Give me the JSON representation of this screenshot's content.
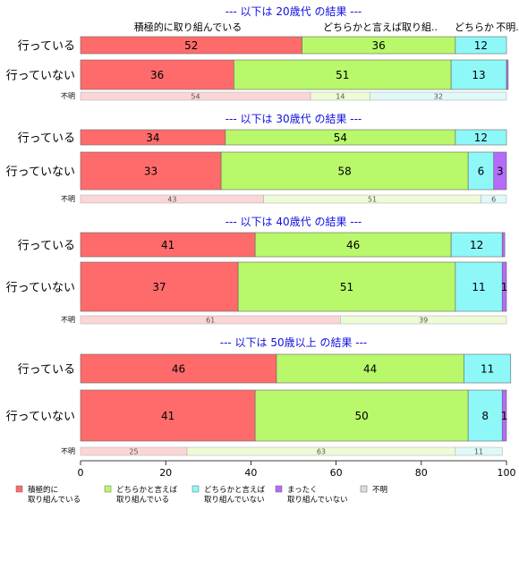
{
  "chart_data": {
    "type": "bar",
    "orientation": "horizontal-stacked-percent",
    "xlim": [
      0,
      100
    ],
    "x_ticks": [
      "0",
      "20",
      "40",
      "60",
      "80",
      "100"
    ],
    "colors": {
      "active": "#ff6b6b",
      "somewhat_active": "#b8f86a",
      "somewhat_inactive": "#8ef8f8",
      "inactive": "#b36bf8",
      "unknown": "#dddddd"
    },
    "top_headers": [
      "積極的に取り組んでいる",
      "どちらかと言えば取り組..",
      "どちらか",
      "不明."
    ],
    "legend": [
      {
        "key": "active",
        "line1": "積極的に",
        "line2": "取り組んでいる"
      },
      {
        "key": "somewhat_active",
        "line1": "どちらかと言えば",
        "line2": "取り組んでいる"
      },
      {
        "key": "somewhat_inactive",
        "line1": "どちらかと言えば",
        "line2": "取り組んでいない"
      },
      {
        "key": "inactive",
        "line1": "まったく",
        "line2": "取り組んでいない"
      },
      {
        "key": "unknown",
        "line1": "不明",
        "line2": ""
      }
    ],
    "panels": [
      {
        "title": "--- 以下は 20歳代 の結果 ---",
        "rows": [
          {
            "label": "行っている",
            "values": [
              52,
              36,
              12,
              0
            ],
            "labels": [
              "52",
              "36",
              "12",
              ""
            ]
          },
          {
            "label": "行っていない",
            "values": [
              36,
              51,
              13,
              0.4
            ],
            "labels": [
              "36",
              "51",
              "13",
              ""
            ]
          }
        ],
        "unknown": {
          "label": "不明",
          "values": [
            54,
            14,
            32,
            0
          ],
          "labels": [
            "54",
            "14",
            "32",
            ""
          ]
        }
      },
      {
        "title": "--- 以下は 30歳代 の結果 ---",
        "rows": [
          {
            "label": "行っている",
            "values": [
              34,
              54,
              12,
              0
            ],
            "labels": [
              "34",
              "54",
              "12",
              ""
            ]
          },
          {
            "label": "行っていない",
            "values": [
              33,
              58,
              6,
              3
            ],
            "labels": [
              "33",
              "58",
              "6",
              "3"
            ]
          }
        ],
        "unknown": {
          "label": "不明",
          "values": [
            43,
            51,
            6,
            0
          ],
          "labels": [
            "43",
            "51",
            "6",
            ""
          ]
        }
      },
      {
        "title": "--- 以下は 40歳代 の結果 ---",
        "rows": [
          {
            "label": "行っている",
            "values": [
              41,
              46,
              12,
              0.6
            ],
            "labels": [
              "41",
              "46",
              "12",
              ""
            ]
          },
          {
            "label": "行っていない",
            "values": [
              37,
              51,
              11,
              1
            ],
            "labels": [
              "37",
              "51",
              "11",
              "1"
            ]
          }
        ],
        "unknown": {
          "label": "不明",
          "values": [
            61,
            39,
            0,
            0
          ],
          "labels": [
            "61",
            "39",
            "",
            ""
          ]
        }
      },
      {
        "title": "--- 以下は 50歳以上 の結果 ---",
        "rows": [
          {
            "label": "行っている",
            "values": [
              46,
              44,
              11,
              0
            ],
            "labels": [
              "46",
              "44",
              "11",
              ""
            ]
          },
          {
            "label": "行っていない",
            "values": [
              41,
              50,
              8,
              1
            ],
            "labels": [
              "41",
              "50",
              "8",
              "1"
            ]
          }
        ],
        "unknown": {
          "label": "不明",
          "values": [
            25,
            63,
            11,
            0
          ],
          "labels": [
            "25",
            "63",
            "11",
            ""
          ]
        }
      }
    ]
  }
}
